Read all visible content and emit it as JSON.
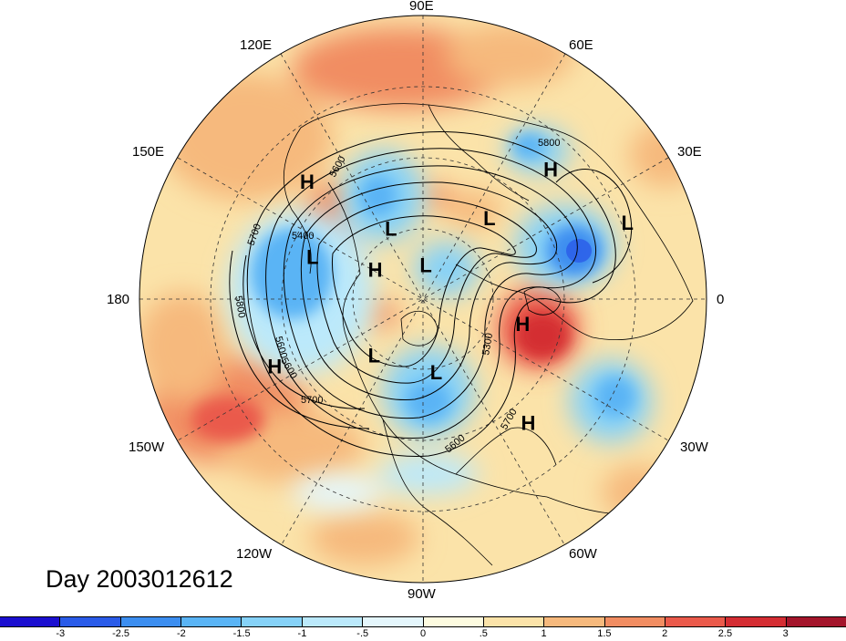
{
  "day_label": "Day 2003012612",
  "longitude_labels": {
    "n90e": "90E",
    "n120e": "120E",
    "n60e": "60E",
    "n150e": "150E",
    "n30e": "30E",
    "n180": "180",
    "n0": "0",
    "n150w": "150W",
    "n30w": "30W",
    "n120w": "120W",
    "n60w": "60W",
    "n90w": "90W"
  },
  "pressure_centers": [
    {
      "label": "H",
      "lon": 135,
      "lat": 30
    },
    {
      "label": "H",
      "lon": 45,
      "lat": 25
    },
    {
      "label": "L",
      "lon": 20,
      "lat": 15
    },
    {
      "label": "L",
      "lon": 115,
      "lat": 60
    },
    {
      "label": "L",
      "lon": 50,
      "lat": 50
    },
    {
      "label": "L",
      "lon": 160,
      "lat": 45
    },
    {
      "label": "H",
      "lon": 150,
      "lat": 68
    },
    {
      "label": "L",
      "lon": 85,
      "lat": 77
    },
    {
      "label": "L",
      "lon": -130,
      "lat": 60
    },
    {
      "label": "H",
      "lon": -15,
      "lat": 50
    },
    {
      "label": "H",
      "lon": -155,
      "lat": 30
    },
    {
      "label": "L",
      "lon": -80,
      "lat": 60
    },
    {
      "label": "H",
      "lon": -50,
      "lat": 30
    }
  ],
  "contour_labels": [
    "5800",
    "5600",
    "5700",
    "5400",
    "5800",
    "5600",
    "5700",
    "5300",
    "5700",
    "5600",
    "5600"
  ],
  "colorbar": {
    "colors": [
      "#1b0fd0",
      "#2a5be8",
      "#3c8ef0",
      "#5ab4f5",
      "#86d2f8",
      "#bbe9fb",
      "#e4f6fc",
      "#fdfbe0",
      "#fbe3a9",
      "#f6b97d",
      "#f18d62",
      "#ea5a4b",
      "#d42d33",
      "#a4152b"
    ],
    "tick_labels": [
      "-3",
      "-2.5",
      "-2",
      "-1.5",
      "-1",
      "-.5",
      "0",
      ".5",
      "1",
      "1.5",
      "2",
      "2.5",
      "3"
    ]
  }
}
